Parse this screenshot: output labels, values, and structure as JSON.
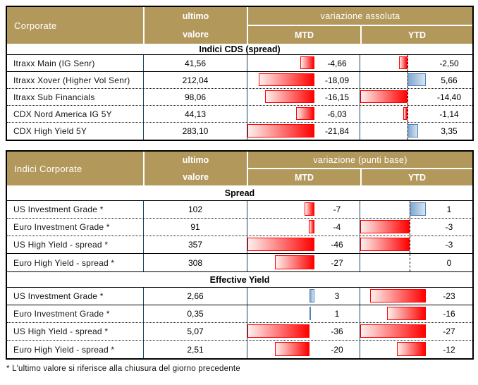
{
  "colors": {
    "header_bg": "#B3985C",
    "header_text": "#FFFFFF",
    "grid_dark": "#17455E",
    "outer": "#000000",
    "bar_neg": "#FF0000",
    "bar_neg_tip": "#FDF1EF",
    "bar_pos_border": "#4F81BD",
    "bar_pos_from": "#7EA6D0",
    "bar_pos_to": "#D9E4F0",
    "axis": "#000000"
  },
  "footer_note": "* L'ultimo valore si riferisce alla chiusura del giorno precedente",
  "chart_data": [
    {
      "type": "table",
      "title": "Corporate — Indici CDS (spread)",
      "header": {
        "title": "Corporate",
        "value_col": [
          "ultimo",
          "valore"
        ],
        "group_label": "variazione assoluta",
        "mtd_label": "MTD",
        "ytd_label": "YTD"
      },
      "sections": [
        {
          "label": "Indici CDS (spread)",
          "axis_line": {
            "mtd": false,
            "ytd": true
          },
          "rows": [
            {
              "label": "Itraxx Main (IG Senr)",
              "value": "41,56",
              "mtd": -4.66,
              "mtd_text": "-4,66",
              "ytd": -2.5,
              "ytd_text": "-2,50",
              "divider": "solid"
            },
            {
              "label": "Itraxx Xover (Higher Vol Senr)",
              "value": "212,04",
              "mtd": -18.09,
              "mtd_text": "-18,09",
              "ytd": 5.66,
              "ytd_text": "5,66",
              "divider": "dotted"
            },
            {
              "label": "Itraxx Sub Financials",
              "value": "98,06",
              "mtd": -16.15,
              "mtd_text": "-16,15",
              "ytd": -14.4,
              "ytd_text": "-14,40",
              "divider": "dotted"
            },
            {
              "label": "CDX Nord America IG 5Y",
              "value": "44,13",
              "mtd": -6.03,
              "mtd_text": "-6,03",
              "ytd": -1.14,
              "ytd_text": "-1,14",
              "divider": "dotted"
            },
            {
              "label": "CDX High Yield 5Y",
              "value": "283,10",
              "mtd": -21.84,
              "mtd_text": "-21,84",
              "ytd": 3.35,
              "ytd_text": "3,35",
              "divider": "none"
            }
          ]
        }
      ]
    },
    {
      "type": "table",
      "title": "Indici Corporate",
      "header": {
        "title": "Indici Corporate",
        "value_col": [
          "ultimo",
          "valore"
        ],
        "group_label": "variazione (punti base)",
        "mtd_label": "MTD",
        "ytd_label": "YTD"
      },
      "sections": [
        {
          "label": "Spread",
          "axis_line": {
            "mtd": false,
            "ytd": true
          },
          "rows": [
            {
              "label": "US Investment Grade *",
              "value": "102",
              "mtd": -7,
              "mtd_text": "-7",
              "ytd": 1,
              "ytd_text": "1",
              "divider": "dotted"
            },
            {
              "label": "Euro Investment Grade *",
              "value": "91",
              "mtd": -4,
              "mtd_text": "-4",
              "ytd": -3,
              "ytd_text": "-3",
              "divider": "dotted"
            },
            {
              "label": "US High Yield - spread *",
              "value": "357",
              "mtd": -46,
              "mtd_text": "-46",
              "ytd": -3,
              "ytd_text": "-3",
              "divider": "solid"
            },
            {
              "label": "Euro High Yield - spread *",
              "value": "308",
              "mtd": -27,
              "mtd_text": "-27",
              "ytd": 0,
              "ytd_text": "0",
              "divider": "none"
            }
          ]
        },
        {
          "label": "Effective Yield",
          "axis_line": {
            "mtd": false,
            "ytd": false
          },
          "rows": [
            {
              "label": "US Investment Grade *",
              "value": "2,66",
              "mtd": 3,
              "mtd_text": "3",
              "ytd": -23,
              "ytd_text": "-23",
              "divider": "solid"
            },
            {
              "label": "Euro Investment Grade *",
              "value": "0,35",
              "mtd": 1,
              "mtd_text": "1",
              "ytd": -16,
              "ytd_text": "-16",
              "divider": "dotted"
            },
            {
              "label": "US High Yield - spread *",
              "value": "5,07",
              "mtd": -36,
              "mtd_text": "-36",
              "ytd": -27,
              "ytd_text": "-27",
              "divider": "dotted"
            },
            {
              "label": "Euro High Yield - spread *",
              "value": "2,51",
              "mtd": -20,
              "mtd_text": "-20",
              "ytd": -12,
              "ytd_text": "-12",
              "divider": "none"
            }
          ]
        }
      ]
    }
  ]
}
